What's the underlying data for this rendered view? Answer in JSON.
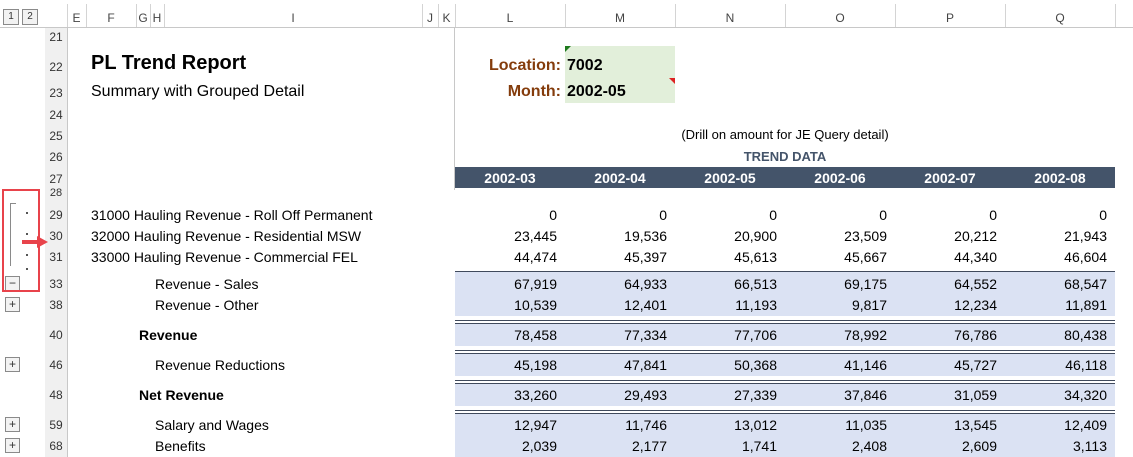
{
  "column_letters": [
    "E",
    "F",
    "G",
    "H",
    "I",
    "J",
    "K",
    "L",
    "M",
    "N",
    "O",
    "P",
    "Q"
  ],
  "group_levels": [
    "1",
    "2"
  ],
  "row_numbers": [
    "21",
    "22",
    "23",
    "24",
    "25",
    "26",
    "27",
    "28",
    "29",
    "30",
    "31",
    "33",
    "38",
    "40",
    "46",
    "48",
    "59",
    "68"
  ],
  "report": {
    "title": "PL Trend Report",
    "subtitle": "Summary with Grouped Detail",
    "location_label": "Location:",
    "location_value": "7002",
    "month_label": "Month:",
    "month_value": "2002-05",
    "drill_note": "(Drill on amount for JE Query detail)",
    "trend_label": "TREND DATA"
  },
  "months": [
    "2002-03",
    "2002-04",
    "2002-05",
    "2002-06",
    "2002-07",
    "2002-08"
  ],
  "rows": [
    {
      "label": "31000  Hauling Revenue - Roll Off Permanent",
      "values": [
        "0",
        "0",
        "0",
        "0",
        "0",
        "0"
      ]
    },
    {
      "label": "32000  Hauling Revenue - Residential MSW",
      "values": [
        "23,445",
        "19,536",
        "20,900",
        "23,509",
        "20,212",
        "21,943"
      ]
    },
    {
      "label": "33000  Hauling Revenue - Commercial FEL",
      "values": [
        "44,474",
        "45,397",
        "45,613",
        "45,667",
        "44,340",
        "46,604"
      ]
    },
    {
      "label": "Revenue - Sales",
      "values": [
        "67,919",
        "64,933",
        "66,513",
        "69,175",
        "64,552",
        "68,547"
      ]
    },
    {
      "label": "Revenue - Other",
      "values": [
        "10,539",
        "12,401",
        "11,193",
        "9,817",
        "12,234",
        "11,891"
      ]
    },
    {
      "label": "Revenue",
      "values": [
        "78,458",
        "77,334",
        "77,706",
        "78,992",
        "76,786",
        "80,438"
      ]
    },
    {
      "label": "Revenue Reductions",
      "values": [
        "45,198",
        "47,841",
        "50,368",
        "41,146",
        "45,727",
        "46,118"
      ]
    },
    {
      "label": "Net Revenue",
      "values": [
        "33,260",
        "29,493",
        "27,339",
        "37,846",
        "31,059",
        "34,320"
      ]
    },
    {
      "label": "Salary and Wages",
      "values": [
        "12,947",
        "11,746",
        "13,012",
        "11,035",
        "13,545",
        "12,409"
      ]
    },
    {
      "label": "Benefits",
      "values": [
        "2,039",
        "2,177",
        "1,741",
        "2,408",
        "2,609",
        "3,113"
      ]
    }
  ],
  "outline_buttons": {
    "collapse": "−",
    "expand": "+"
  },
  "colors": {
    "header_band": "#44546a",
    "input_fill": "#e2efda",
    "label_brown": "#843c0c",
    "data_band": "#dbe2f3",
    "annotation_red": "#e8434b"
  }
}
